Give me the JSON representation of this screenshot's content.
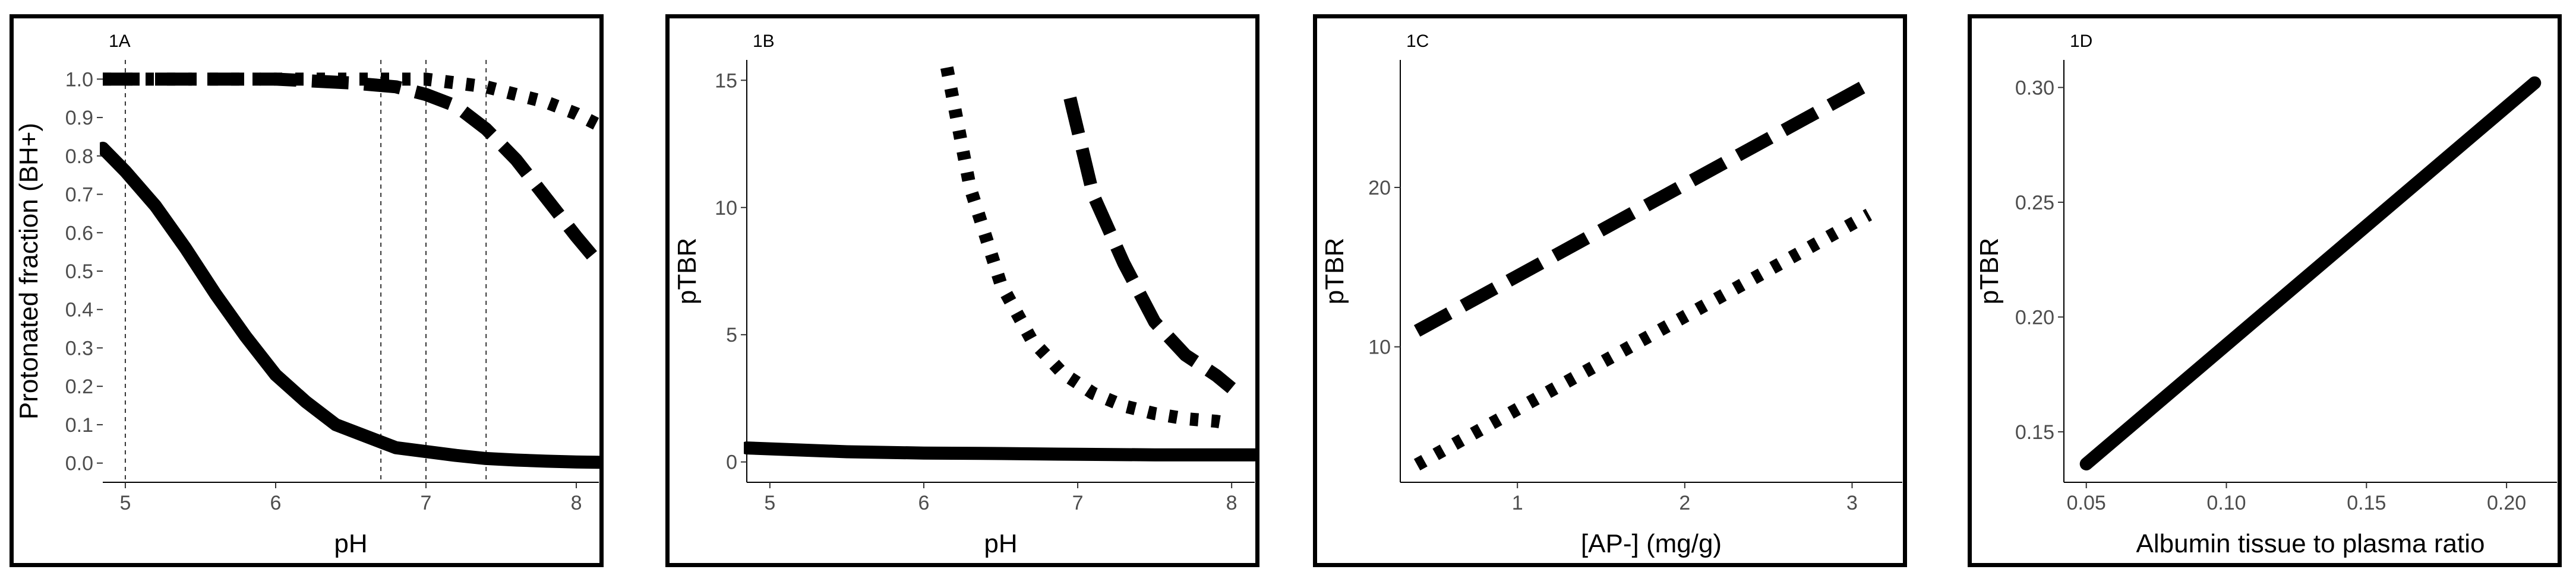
{
  "chart_data": [
    {
      "panel": "1A",
      "type": "line",
      "xlabel": "pH",
      "ylabel": "Protonated fraction (BH+)",
      "xlim": [
        4.85,
        8.15
      ],
      "ylim": [
        -0.05,
        1.05
      ],
      "xticks": [
        "5",
        "6",
        "7",
        "8"
      ],
      "yticks": [
        "0.0",
        "0.1",
        "0.2",
        "0.3",
        "0.4",
        "0.5",
        "0.6",
        "0.7",
        "0.8",
        "0.9",
        "1.0"
      ],
      "vlines": [
        5.0,
        6.7,
        7.0,
        7.4
      ],
      "grid": false,
      "series": [
        {
          "style": "solid",
          "x": [
            4.85,
            5.0,
            5.2,
            5.4,
            5.6,
            5.8,
            6.0,
            6.2,
            6.4,
            6.6,
            6.8,
            7.0,
            7.2,
            7.4,
            7.6,
            7.8,
            8.0,
            8.15
          ],
          "y": [
            0.82,
            0.76,
            0.67,
            0.56,
            0.44,
            0.33,
            0.23,
            0.16,
            0.1,
            0.07,
            0.04,
            0.03,
            0.02,
            0.012,
            0.008,
            0.005,
            0.003,
            0.002
          ]
        },
        {
          "style": "dashed",
          "x": [
            4.85,
            5.5,
            6.0,
            6.5,
            6.8,
            7.0,
            7.2,
            7.4,
            7.6,
            7.8,
            8.0,
            8.15
          ],
          "y": [
            1.0,
            1.0,
            1.0,
            0.99,
            0.98,
            0.96,
            0.93,
            0.87,
            0.79,
            0.69,
            0.59,
            0.52
          ]
        },
        {
          "style": "dotted",
          "x": [
            4.85,
            5.5,
            6.0,
            6.5,
            7.0,
            7.2,
            7.4,
            7.6,
            7.8,
            8.0,
            8.15
          ],
          "y": [
            1.0,
            1.0,
            1.0,
            1.0,
            1.0,
            0.99,
            0.98,
            0.96,
            0.94,
            0.91,
            0.88
          ]
        }
      ]
    },
    {
      "panel": "1B",
      "type": "line",
      "xlabel": "pH",
      "ylabel": "pTBR",
      "xlim": [
        4.85,
        8.15
      ],
      "ylim": [
        -0.8,
        15.8
      ],
      "xticks": [
        "5",
        "6",
        "7",
        "8"
      ],
      "yticks": [
        "0",
        "5",
        "10",
        "15"
      ],
      "grid": false,
      "series": [
        {
          "style": "solid",
          "x": [
            4.85,
            5.5,
            6.0,
            6.5,
            7.0,
            7.5,
            8.15
          ],
          "y": [
            0.55,
            0.4,
            0.35,
            0.33,
            0.3,
            0.28,
            0.28
          ]
        },
        {
          "style": "dotted",
          "x": [
            6.15,
            6.3,
            6.5,
            6.7,
            6.9,
            7.1,
            7.3,
            7.5,
            7.7,
            7.9,
            8.0
          ],
          "y": [
            15.5,
            10.8,
            7.0,
            4.8,
            3.5,
            2.7,
            2.2,
            1.9,
            1.7,
            1.6,
            1.5
          ]
        },
        {
          "style": "dashed",
          "x": [
            6.95,
            7.1,
            7.3,
            7.5,
            7.7,
            7.9,
            8.0
          ],
          "y": [
            14.3,
            10.5,
            7.8,
            5.5,
            4.2,
            3.4,
            2.9
          ]
        }
      ]
    },
    {
      "panel": "1C",
      "type": "line",
      "xlabel": "[AP-] (mg/g)",
      "ylabel": "pTBR",
      "xlim": [
        0.3,
        3.3
      ],
      "ylim": [
        1.5,
        28.0
      ],
      "xticks": [
        "1",
        "2",
        "3"
      ],
      "yticks": [
        "10",
        "20"
      ],
      "grid": false,
      "series": [
        {
          "style": "dashed",
          "x": [
            0.4,
            3.1
          ],
          "y": [
            11.0,
            26.5
          ]
        },
        {
          "style": "dotted",
          "x": [
            0.4,
            3.1
          ],
          "y": [
            2.6,
            18.3
          ]
        }
      ]
    },
    {
      "panel": "1D",
      "type": "line",
      "xlabel": "Albumin tissue to plasma ratio",
      "ylabel": "pTBR",
      "xlim": [
        0.042,
        0.218
      ],
      "ylim": [
        0.128,
        0.312
      ],
      "xticks": [
        "0.05",
        "0.10",
        "0.15",
        "0.20"
      ],
      "yticks": [
        "0.15",
        "0.20",
        "0.25",
        "0.30"
      ],
      "grid": false,
      "series": [
        {
          "style": "solid",
          "x": [
            0.05,
            0.21
          ],
          "y": [
            0.136,
            0.302
          ]
        }
      ]
    }
  ]
}
